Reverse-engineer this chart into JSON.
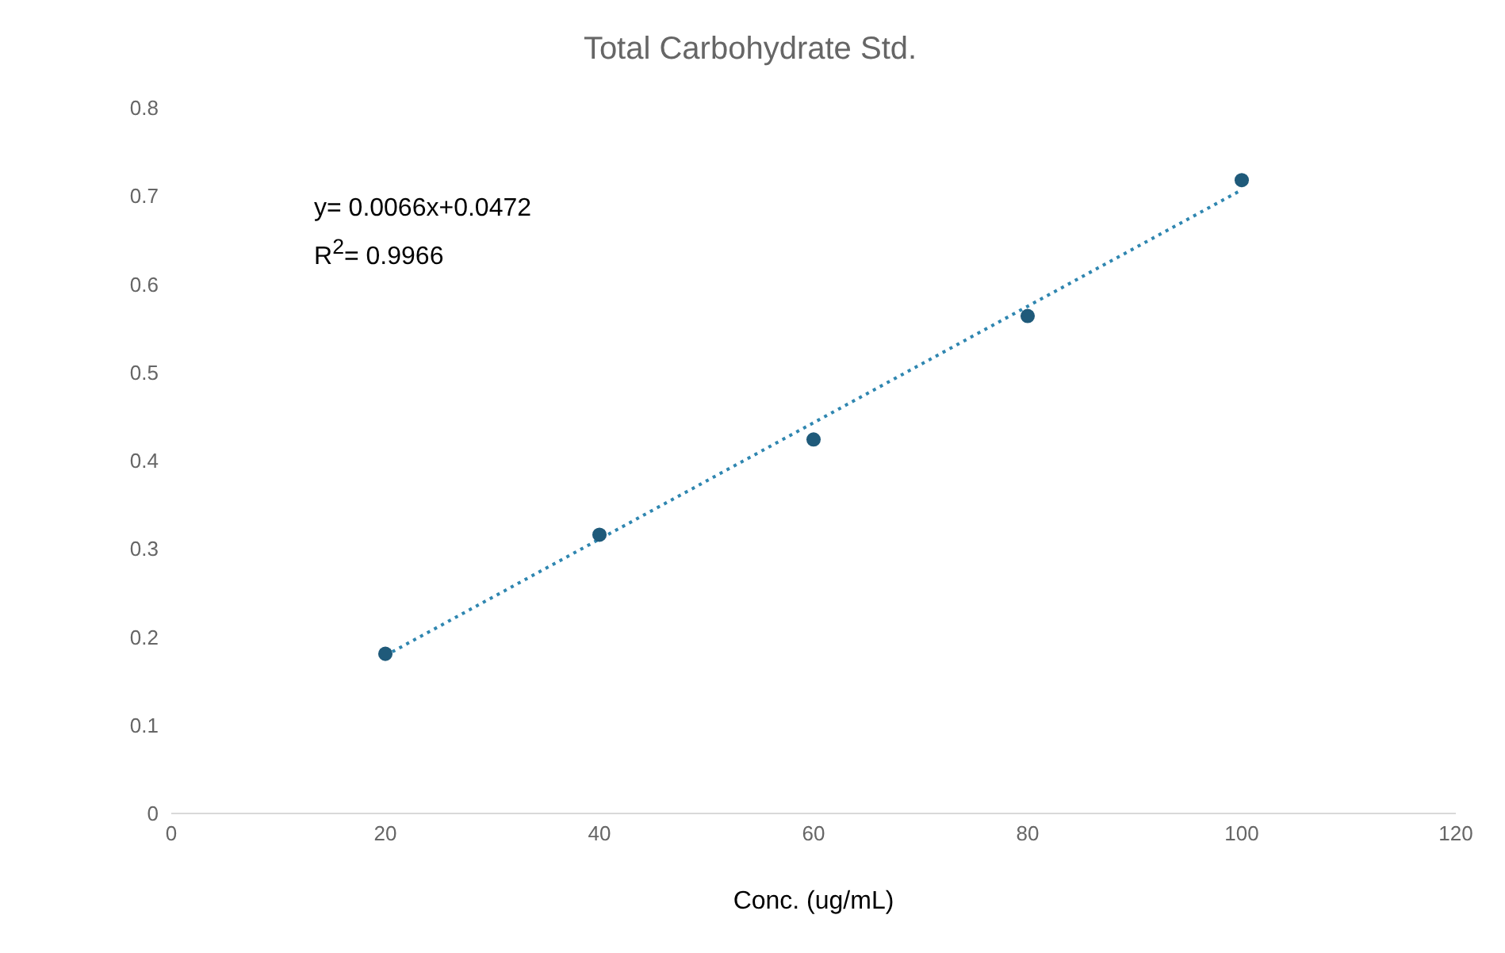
{
  "chart_data": {
    "type": "scatter",
    "title": "Total Carbohydrate Std.",
    "xlabel": "Conc. (ug/mL)",
    "x": [
      20,
      40,
      60,
      80,
      100
    ],
    "series": [
      {
        "type": "scatter",
        "color": "#1f5a7a",
        "values": [
          0.181,
          0.316,
          0.424,
          0.564,
          0.718
        ]
      },
      {
        "type": "line",
        "color": "#2f86b0",
        "x": [
          20,
          100
        ],
        "values": [
          0.179,
          0.707
        ],
        "line_style": "dotted",
        "marker": "none"
      }
    ],
    "xlim": [
      0,
      120
    ],
    "xticks": [
      0,
      20,
      40,
      60,
      80,
      100,
      120
    ],
    "ylim": [
      0,
      0.8
    ],
    "yticks": [
      0,
      0.1,
      0.2,
      0.3,
      0.4,
      0.5,
      0.6,
      0.7,
      0.8
    ],
    "annotations": [
      "y= 0.0066x+0.0472",
      "R$^{2}$= 0.9966"
    ],
    "grid": false,
    "legend": false,
    "marker": "circle"
  }
}
